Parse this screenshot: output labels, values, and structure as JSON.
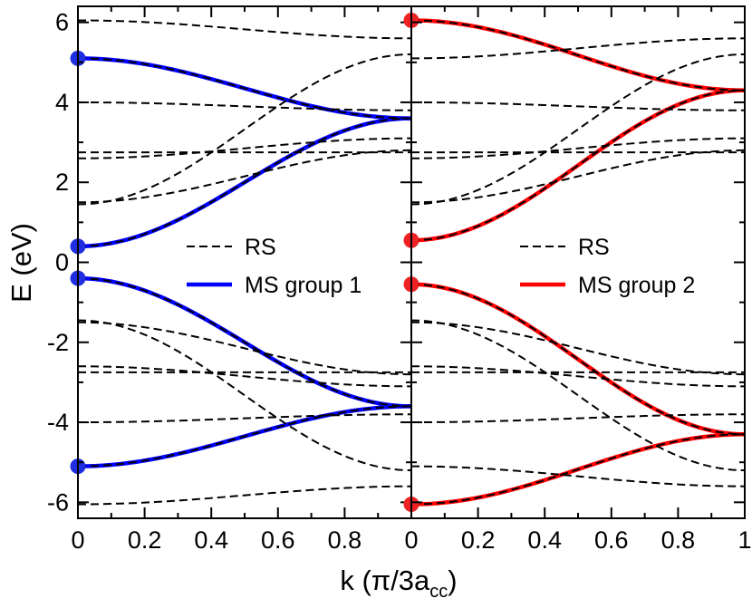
{
  "chart_data": [
    {
      "type": "line",
      "panel": "left",
      "xlabel": "k (π/3a",
      "xlabel_sub": "cc",
      "xlabel_end": ")",
      "ylabel": "E (eV)",
      "xlim": [
        0,
        1
      ],
      "ylim": [
        -6.4,
        6.4
      ],
      "x_ticks": [
        0,
        0.2,
        0.4,
        0.6,
        0.8
      ],
      "x_tick_labels": [
        "0",
        "0.2",
        "0.4",
        "0.6",
        "0.8"
      ],
      "y_ticks": [
        -6,
        -4,
        -2,
        0,
        2,
        4,
        6
      ],
      "y_tick_labels": [
        "-6",
        "-4",
        "-2",
        "0",
        "2",
        "4",
        "6"
      ],
      "grid": false,
      "legend": {
        "placement": "right-center",
        "entries": [
          "RS",
          "MS group 1"
        ]
      },
      "highlight_color": "#0000ff",
      "marker_color": "#1f2ee0",
      "series": [
        {
          "name": "RS",
          "style": "dashed",
          "color": "#000000",
          "bands": [
            {
              "e0": 6.05,
              "e1": 5.6
            },
            {
              "e0": 5.1,
              "e1": 3.6
            },
            {
              "e0": 4.0,
              "e1": 3.8
            },
            {
              "e0": 2.75,
              "e1": 2.75
            },
            {
              "e0": 2.6,
              "e1": 3.1
            },
            {
              "e0": 1.5,
              "e1": 2.8
            },
            {
              "e0": 1.45,
              "e1": 5.2
            },
            {
              "e0": 0.4,
              "e1": 3.6
            },
            {
              "e0": -0.4,
              "e1": -3.6
            },
            {
              "e0": -1.45,
              "e1": -5.2
            },
            {
              "e0": -1.5,
              "e1": -2.8
            },
            {
              "e0": -2.6,
              "e1": -3.1
            },
            {
              "e0": -2.75,
              "e1": -2.75
            },
            {
              "e0": -4.0,
              "e1": -3.8
            },
            {
              "e0": -5.1,
              "e1": -3.6
            },
            {
              "e0": -6.05,
              "e1": -5.6
            }
          ]
        },
        {
          "name": "MS group 1",
          "style": "solid",
          "color": "#0000ff",
          "bands": [
            {
              "e0": 5.1,
              "e1": 3.6
            },
            {
              "e0": 0.4,
              "e1": 3.6
            },
            {
              "e0": -0.4,
              "e1": -3.6
            },
            {
              "e0": -5.1,
              "e1": -3.6
            }
          ]
        }
      ],
      "markers_at_k0": [
        5.1,
        0.4,
        -0.4,
        -5.1
      ]
    },
    {
      "type": "line",
      "panel": "right",
      "xlim": [
        0,
        1
      ],
      "ylim": [
        -6.4,
        6.4
      ],
      "x_ticks": [
        0,
        0.2,
        0.4,
        0.6,
        0.8,
        1
      ],
      "x_tick_labels": [
        "0",
        "0.2",
        "0.4",
        "0.6",
        "0.8",
        "1"
      ],
      "grid": false,
      "legend": {
        "placement": "right-center",
        "entries": [
          "RS",
          "MS group 2"
        ]
      },
      "highlight_color": "#ff0000",
      "marker_color": "#ee2222",
      "series": [
        {
          "name": "RS",
          "style": "dashed",
          "color": "#000000",
          "bands": [
            {
              "e0": 6.05,
              "e1": 4.3
            },
            {
              "e0": 5.1,
              "e1": 5.6
            },
            {
              "e0": 4.0,
              "e1": 3.8
            },
            {
              "e0": 2.75,
              "e1": 2.75
            },
            {
              "e0": 2.6,
              "e1": 3.1
            },
            {
              "e0": 1.5,
              "e1": 2.8
            },
            {
              "e0": 1.45,
              "e1": 5.2
            },
            {
              "e0": 0.55,
              "e1": 4.3
            },
            {
              "e0": -0.55,
              "e1": -4.3
            },
            {
              "e0": -1.45,
              "e1": -5.2
            },
            {
              "e0": -1.5,
              "e1": -2.8
            },
            {
              "e0": -2.6,
              "e1": -3.1
            },
            {
              "e0": -2.75,
              "e1": -2.75
            },
            {
              "e0": -4.0,
              "e1": -3.8
            },
            {
              "e0": -5.1,
              "e1": -5.6
            },
            {
              "e0": -6.05,
              "e1": -4.3
            }
          ]
        },
        {
          "name": "MS group 2",
          "style": "solid",
          "color": "#ff0000",
          "bands": [
            {
              "e0": 6.05,
              "e1": 4.3
            },
            {
              "e0": 0.55,
              "e1": 4.3
            },
            {
              "e0": -0.55,
              "e1": -4.3
            },
            {
              "e0": -6.05,
              "e1": -4.3
            }
          ]
        }
      ],
      "markers_at_k0": [
        6.05,
        0.55,
        -0.55,
        -6.05
      ]
    }
  ]
}
